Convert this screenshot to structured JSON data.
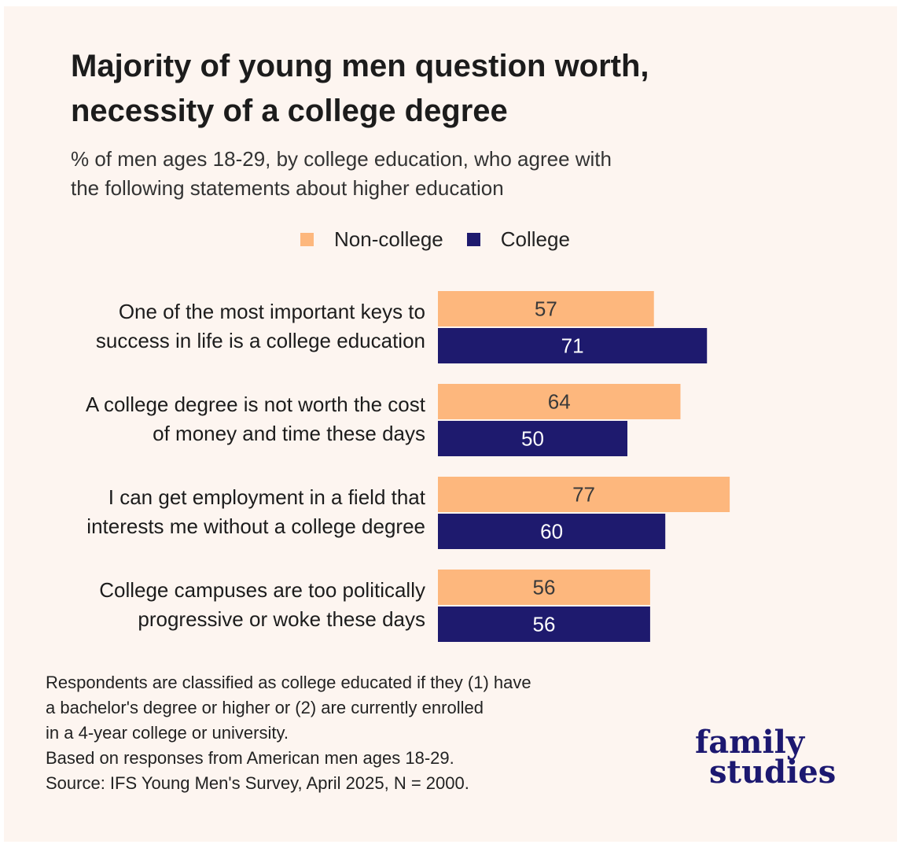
{
  "header": {
    "title_line1": "Majority of young men question worth,",
    "title_line2": "necessity of a college degree",
    "subtitle_line1": "% of men ages 18-29, by college education, who agree with",
    "subtitle_line2": "the following statements about higher education"
  },
  "legend": {
    "non_college": "Non-college",
    "college": "College"
  },
  "colors": {
    "non_college": "#fdb77d",
    "college": "#1e1a6e",
    "non_college_label": "#3a3a3a",
    "college_label": "#ffffff"
  },
  "chart_data": {
    "type": "bar",
    "orientation": "horizontal",
    "title": "Majority of young men question worth, necessity of a college degree",
    "subtitle": "% of men ages 18-29, by college education, who agree with the following statements about higher education",
    "categories": [
      [
        "One of the most important keys to",
        "success in life is a college education"
      ],
      [
        "A college degree is not worth the cost",
        "of money and time these days"
      ],
      [
        "I can get employment in a field that",
        "interests me without a college degree"
      ],
      [
        "College campuses are too politically",
        "progressive or woke these days"
      ]
    ],
    "series": [
      {
        "name": "Non-college",
        "values": [
          57,
          64,
          77,
          56
        ]
      },
      {
        "name": "College",
        "values": [
          71,
          50,
          60,
          56
        ]
      }
    ],
    "xlim": [
      0,
      100
    ],
    "grid": false,
    "legend_position": "top"
  },
  "notes": {
    "line1": "Respondents are classified as college educated if they (1) have",
    "line2": "a bachelor's degree or higher or (2) are currently enrolled",
    "line3": "in a 4-year college or university.",
    "line4": "Based on responses from American men ages 18-29.",
    "line5": "Source: IFS Young Men's Survey, April 2025, N = 2000."
  },
  "logo": {
    "line1": "family",
    "line2": "studies"
  }
}
